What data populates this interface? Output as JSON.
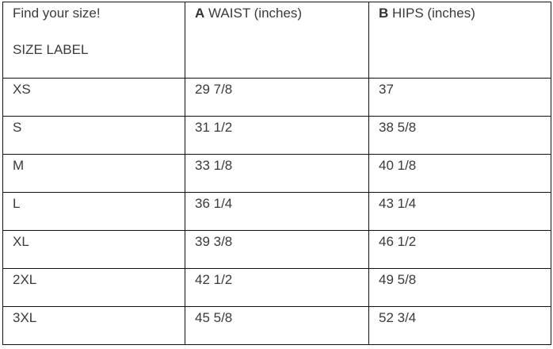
{
  "table": {
    "header": [
      {
        "title": "Find your size!",
        "label": "SIZE LABEL"
      },
      {
        "letter": "A",
        "label": "WAIST (inches)"
      },
      {
        "letter": "B",
        "label": "HIPS (inches)"
      }
    ],
    "rows": [
      [
        "XS",
        "29 7/8",
        "37"
      ],
      [
        "S",
        "31 1/2",
        "38 5/8"
      ],
      [
        "M",
        "33 1/8",
        "40 1/8"
      ],
      [
        "L",
        "36 1/4",
        "43 1/4"
      ],
      [
        "XL",
        "39 3/8",
        "46 1/2"
      ],
      [
        "2XL",
        "42 1/2",
        "49 5/8"
      ],
      [
        "3XL",
        "45 5/8",
        "52 3/4"
      ]
    ]
  }
}
